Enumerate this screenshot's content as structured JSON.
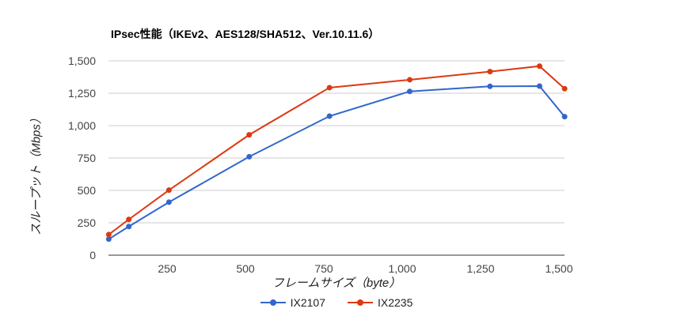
{
  "chart_data": {
    "type": "line",
    "title": "IPsec性能（IKEv2、AES128/SHA512、Ver.10.11.6）",
    "xlabel": "フレームサイズ（byte）",
    "ylabel": "スループット（Mbps）",
    "x": [
      64,
      128,
      256,
      512,
      768,
      1024,
      1280,
      1438,
      1518
    ],
    "xlim": [
      64,
      1518
    ],
    "ylim": [
      0,
      1600
    ],
    "x_ticks": [
      250,
      500,
      750,
      1000,
      1250,
      1500
    ],
    "x_tick_labels": [
      "250",
      "500",
      "750",
      "1,000",
      "1,250",
      "1,500"
    ],
    "y_ticks": [
      0,
      250,
      500,
      750,
      1000,
      1250,
      1500
    ],
    "y_tick_labels": [
      "0",
      "250",
      "500",
      "750",
      "1,000",
      "1,250",
      "1,500"
    ],
    "grid": true,
    "legend_position": "bottom",
    "series": [
      {
        "name": "IX2107",
        "color": "#3366cc",
        "values": [
          124,
          221,
          409,
          760,
          1073,
          1264,
          1303,
          1305,
          1069
        ]
      },
      {
        "name": "IX2235",
        "color": "#dc3912",
        "values": [
          159,
          276,
          502,
          929,
          1293,
          1354,
          1417,
          1459,
          1285
        ]
      }
    ]
  }
}
